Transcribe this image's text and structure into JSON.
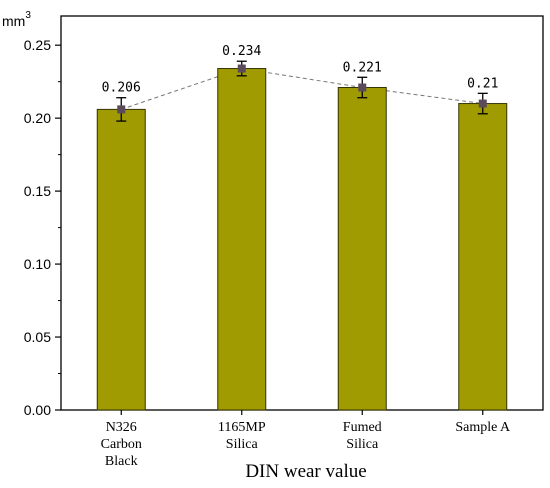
{
  "chart_data": {
    "type": "bar",
    "categories": [
      [
        "N326",
        "Carbon",
        "Black"
      ],
      [
        "1165MP",
        "Silica"
      ],
      [
        "Fumed",
        "Silica"
      ],
      [
        "Sample A"
      ]
    ],
    "values": [
      0.206,
      0.234,
      0.221,
      0.21
    ],
    "data_labels": [
      "0.206",
      "0.234",
      "0.221",
      "0.21"
    ],
    "error": [
      0.008,
      0.005,
      0.007,
      0.007
    ],
    "ylim": [
      0,
      0.27
    ],
    "yticks": [
      0.0,
      0.05,
      0.1,
      0.15,
      0.2,
      0.25
    ],
    "ytick_labels": [
      "0.00",
      "0.05",
      "0.10",
      "0.15",
      "0.20",
      "0.25"
    ],
    "unit": "mm",
    "unit_exp": "3",
    "xlabel": "DIN wear value",
    "ylabel": "",
    "title": "",
    "trend_line": "dashed",
    "grid": false,
    "colors": {
      "bar_fill": "#a09b00",
      "bar_stroke": "#333300",
      "marker": "#5a4a5a",
      "trend": "#777777"
    }
  }
}
